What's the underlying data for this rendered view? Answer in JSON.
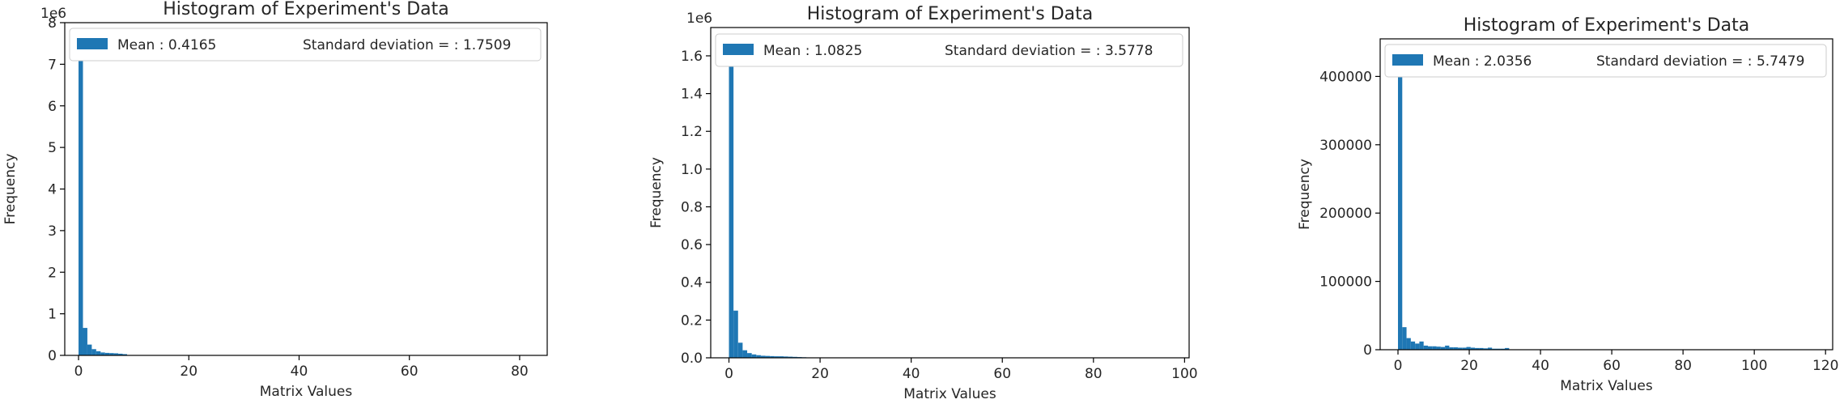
{
  "chart_data": [
    {
      "type": "bar",
      "title": "Histogram of Experiment's Data",
      "xlabel": "Matrix Values",
      "ylabel": "Frequency",
      "offset_label": "1e6",
      "xlim": [
        -2.5,
        85
      ],
      "ylim": [
        0,
        8000000
      ],
      "x_ticks": [
        0,
        20,
        40,
        60,
        80
      ],
      "x_tick_labels": [
        "0",
        "20",
        "40",
        "60",
        "80"
      ],
      "y_ticks": [
        0,
        1000000,
        2000000,
        3000000,
        4000000,
        5000000,
        6000000,
        7000000,
        8000000
      ],
      "y_tick_labels": [
        "0",
        "1",
        "2",
        "3",
        "4",
        "5",
        "6",
        "7",
        "8"
      ],
      "legend": {
        "position": "top",
        "mean_label": "Mean : 0.4165",
        "std_label": "Standard deviation = : 1.7509"
      },
      "color": "#1f77b4",
      "bin_width": 0.8,
      "bin_starts": [
        0,
        0.8,
        1.6,
        2.4,
        3.2,
        4.0,
        4.8,
        5.6,
        6.4,
        7.2,
        8.0
      ],
      "values": [
        7650000,
        660000,
        260000,
        150000,
        100000,
        70000,
        60000,
        55000,
        50000,
        40000,
        30000
      ]
    },
    {
      "type": "bar",
      "title": "Histogram of Experiment's Data",
      "xlabel": "Matrix Values",
      "ylabel": "Frequency",
      "offset_label": "1e6",
      "xlim": [
        -4,
        101
      ],
      "ylim": [
        0,
        1750000
      ],
      "x_ticks": [
        0,
        20,
        40,
        60,
        80,
        100
      ],
      "x_tick_labels": [
        "0",
        "20",
        "40",
        "60",
        "80",
        "100"
      ],
      "y_ticks": [
        0,
        200000,
        400000,
        600000,
        800000,
        1000000,
        1200000,
        1400000,
        1600000
      ],
      "y_tick_labels": [
        "0.0",
        "0.2",
        "0.4",
        "0.6",
        "0.8",
        "1.0",
        "1.2",
        "1.4",
        "1.6"
      ],
      "legend": {
        "position": "top",
        "mean_label": "Mean : 1.0825",
        "std_label": "Standard deviation = : 3.5778"
      },
      "color": "#1f77b4",
      "bin_width": 1.0,
      "bin_starts": [
        0,
        1,
        2,
        3,
        4,
        5,
        6,
        7,
        8,
        9,
        10,
        11,
        12,
        13,
        14,
        15,
        16
      ],
      "values": [
        1670000,
        250000,
        80000,
        40000,
        25000,
        18000,
        14000,
        11000,
        10000,
        9000,
        8000,
        8000,
        7000,
        6000,
        5000,
        4000,
        3000
      ]
    },
    {
      "type": "bar",
      "title": "Histogram of Experiment's Data",
      "xlabel": "Matrix Values",
      "ylabel": "Frequency",
      "offset_label": "",
      "xlim": [
        -5,
        122
      ],
      "ylim": [
        0,
        455000
      ],
      "x_ticks": [
        0,
        20,
        40,
        60,
        80,
        100,
        120
      ],
      "x_tick_labels": [
        "0",
        "20",
        "40",
        "60",
        "80",
        "100",
        "120"
      ],
      "y_ticks": [
        0,
        100000,
        200000,
        300000,
        400000
      ],
      "y_tick_labels": [
        "0",
        "100000",
        "200000",
        "300000",
        "400000"
      ],
      "legend": {
        "position": "top",
        "mean_label": "Mean : 2.0356",
        "std_label": "Standard deviation = : 5.7479"
      },
      "color": "#1f77b4",
      "bin_width": 1.2,
      "bin_starts": [
        0,
        1.2,
        2.4,
        3.6,
        4.8,
        6.0,
        7.2,
        8.4,
        9.6,
        10.8,
        12.0,
        13.2,
        14.4,
        15.6,
        16.8,
        18.0,
        19.2,
        20.4,
        21.6,
        22.8,
        24.0,
        25.2,
        26.4,
        27.6,
        28.8,
        30.0
      ],
      "values": [
        435000,
        33000,
        17000,
        12000,
        9000,
        12000,
        6000,
        5000,
        5000,
        4500,
        4000,
        6000,
        3500,
        3500,
        3000,
        3000,
        4000,
        3000,
        2500,
        2500,
        2000,
        3000,
        1500,
        1500,
        1500,
        2500
      ]
    }
  ]
}
